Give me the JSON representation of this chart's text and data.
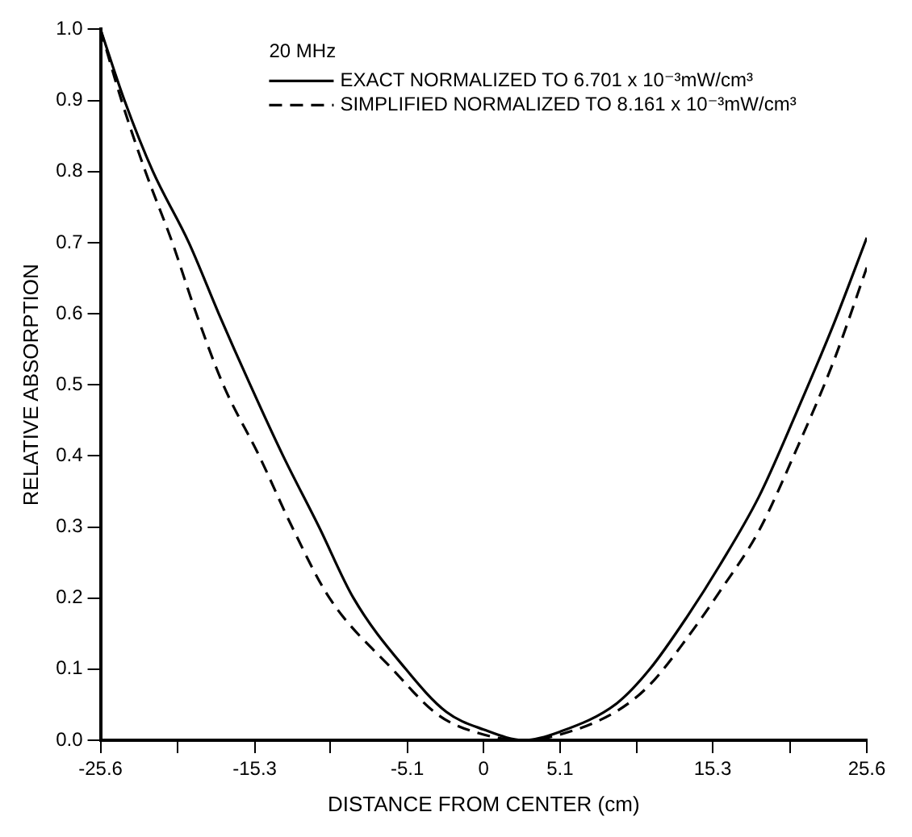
{
  "chart_data": {
    "type": "line",
    "xlabel": "DISTANCE FROM CENTER (cm)",
    "ylabel": "RELATIVE ABSORPTION",
    "legend_title": "20 MHz",
    "legend": "top",
    "marker": "none",
    "grid": false,
    "xlim": [
      -25.6,
      25.6
    ],
    "xticks": [
      -25.6,
      {
        "value": -20.48,
        "label": null
      },
      -15.3,
      {
        "value": -10.24,
        "label": null
      },
      -5.1,
      0,
      5.1,
      {
        "value": 10.24,
        "label": null
      },
      15.3,
      {
        "value": 20.48,
        "label": null
      },
      25.6
    ],
    "ylim": [
      0,
      1
    ],
    "yticks": [
      {
        "value": 0,
        "label": "0.0"
      },
      0.1,
      0.2,
      0.3,
      0.4,
      0.5,
      0.6,
      0.7,
      0.8,
      0.9,
      {
        "value": 1,
        "label": "1.0"
      }
    ],
    "series": [
      {
        "name": "EXACT NORMALIZED TO 6.701 x 10⁻³mW/cm³",
        "color": "#000000",
        "line_style": "solid",
        "x": [
          -25.6,
          -24,
          -22.1,
          -19.7,
          -17.7,
          -15.6,
          -13.4,
          -11,
          -8.7,
          -5.2,
          -2.5,
          0,
          2.7,
          5.1,
          8.9,
          11.1,
          13.6,
          15.8,
          18.4,
          20.9,
          23.4,
          25.6
        ],
        "values": [
          1.0,
          0.9,
          0.8,
          0.7,
          0.6,
          0.5,
          0.4,
          0.3,
          0.2,
          0.1,
          0.04,
          0.015,
          0,
          0.012,
          0.052,
          0.1,
          0.174,
          0.247,
          0.343,
          0.461,
          0.586,
          0.707
        ]
      },
      {
        "name": "SIMPLIFIED NORMALIZED TO 8.161 x 10⁻³mW/cm³",
        "color": "#000000",
        "line_style": "dashed",
        "x": [
          -25.6,
          -24.2,
          -22.6,
          -20.8,
          -19.2,
          -17.4,
          -15,
          -12.8,
          -10.3,
          -6.1,
          -3,
          0,
          2.7,
          5.1,
          8.9,
          11.1,
          13.6,
          15.8,
          18.4,
          20.9,
          23.4,
          25.6
        ],
        "values": [
          1.0,
          0.9,
          0.8,
          0.7,
          0.6,
          0.5,
          0.4,
          0.3,
          0.2,
          0.1,
          0.035,
          0.008,
          0,
          0.008,
          0.041,
          0.078,
          0.144,
          0.21,
          0.295,
          0.409,
          0.534,
          0.665
        ]
      }
    ]
  }
}
